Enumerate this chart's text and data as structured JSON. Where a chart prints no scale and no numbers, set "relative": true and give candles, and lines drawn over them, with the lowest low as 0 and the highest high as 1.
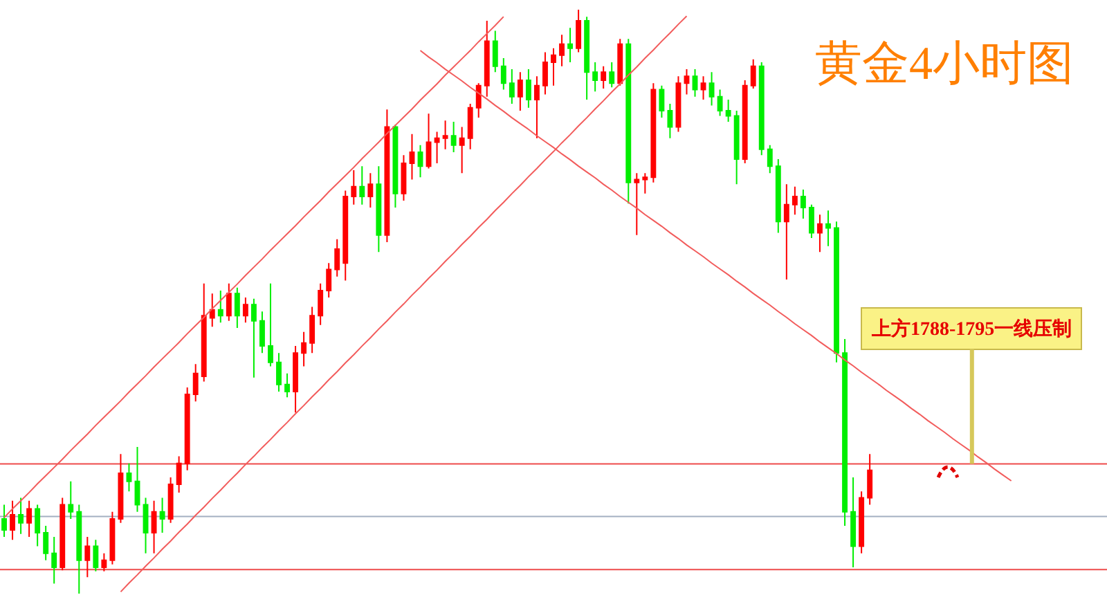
{
  "chart_data": {
    "type": "candlestick",
    "title": "黄金4小时图",
    "relative": true,
    "categories": [
      null,
      null,
      null,
      null,
      null,
      null,
      null,
      null,
      null,
      null,
      null,
      null,
      null,
      null,
      null,
      null,
      null,
      null,
      null,
      null,
      null,
      null,
      null,
      null,
      null,
      null,
      null,
      null,
      null,
      null,
      null,
      null,
      null,
      null,
      null,
      null,
      null,
      null,
      null,
      null,
      null,
      null,
      null,
      null,
      null,
      null,
      null,
      null,
      null,
      null,
      null,
      null,
      null,
      null,
      null,
      null,
      null,
      null,
      null,
      null,
      null,
      null,
      null,
      null,
      null,
      null,
      null,
      null,
      null,
      null,
      null,
      null,
      null,
      null,
      null,
      null,
      null,
      null,
      null,
      null,
      null,
      null,
      null,
      null,
      null,
      null,
      null,
      null,
      null,
      null,
      null,
      null,
      null,
      null,
      null,
      null,
      null,
      null,
      null,
      null,
      null,
      null,
      null,
      null,
      null,
      null,
      null,
      null,
      null,
      null,
      null,
      null,
      null,
      null,
      null,
      null,
      null,
      null,
      null,
      null,
      null,
      null,
      null,
      null,
      null,
      null,
      null,
      null,
      null,
      null,
      null,
      null,
      null
    ],
    "ohlc": [
      [
        0.128,
        0.152,
        0.097,
        0.109
      ],
      [
        0.109,
        0.159,
        0.092,
        0.135
      ],
      [
        0.135,
        0.164,
        0.102,
        0.121
      ],
      [
        0.121,
        0.159,
        0.097,
        0.145
      ],
      [
        0.145,
        0.152,
        0.081,
        0.104
      ],
      [
        0.104,
        0.116,
        0.057,
        0.069
      ],
      [
        0.069,
        0.097,
        0.017,
        0.045
      ],
      [
        0.045,
        0.164,
        0.04,
        0.152
      ],
      [
        0.152,
        0.192,
        0.128,
        0.14
      ],
      [
        0.14,
        0.152,
        0,
        0.057
      ],
      [
        0.057,
        0.097,
        0.028,
        0.081
      ],
      [
        0.081,
        0.092,
        0.038,
        0.045
      ],
      [
        0.045,
        0.069,
        0.038,
        0.057
      ],
      [
        0.057,
        0.14,
        0.05,
        0.128
      ],
      [
        0.128,
        0.239,
        0.121,
        0.206
      ],
      [
        0.206,
        0.223,
        0.175,
        0.192
      ],
      [
        0.192,
        0.251,
        0.14,
        0.152
      ],
      [
        0.152,
        0.164,
        0.069,
        0.104
      ],
      [
        0.104,
        0.159,
        0.069,
        0.14
      ],
      [
        0.14,
        0.164,
        0.104,
        0.128
      ],
      [
        0.128,
        0.199,
        0.121,
        0.187
      ],
      [
        0.187,
        0.235,
        0.173,
        0.223
      ],
      [
        0.223,
        0.353,
        0.211,
        0.341
      ],
      [
        0.341,
        0.393,
        0.329,
        0.377
      ],
      [
        0.372,
        0.531,
        0.363,
        0.476
      ],
      [
        0.472,
        0.514,
        0.457,
        0.486
      ],
      [
        0.486,
        0.519,
        0.464,
        0.476
      ],
      [
        0.476,
        0.531,
        0.467,
        0.514
      ],
      [
        0.514,
        0.524,
        0.455,
        0.476
      ],
      [
        0.476,
        0.507,
        0.464,
        0.495
      ],
      [
        0.495,
        0.505,
        0.37,
        0.467
      ],
      [
        0.467,
        0.483,
        0.412,
        0.424
      ],
      [
        0.424,
        0.531,
        0.389,
        0.396
      ],
      [
        0.396,
        0.412,
        0.346,
        0.358
      ],
      [
        0.358,
        0.377,
        0.336,
        0.346
      ],
      [
        0.346,
        0.424,
        0.31,
        0.412
      ],
      [
        0.412,
        0.448,
        0.389,
        0.429
      ],
      [
        0.429,
        0.491,
        0.412,
        0.476
      ],
      [
        0.476,
        0.531,
        0.46,
        0.519
      ],
      [
        0.519,
        0.566,
        0.507,
        0.555
      ],
      [
        0.555,
        0.607,
        0.543,
        0.59
      ],
      [
        0.566,
        0.69,
        0.536,
        0.68
      ],
      [
        0.68,
        0.725,
        0.666,
        0.697
      ],
      [
        0.697,
        0.732,
        0.666,
        0.68
      ],
      [
        0.68,
        0.72,
        0.661,
        0.701
      ],
      [
        0.701,
        0.732,
        0.585,
        0.614
      ],
      [
        0.614,
        0.829,
        0.602,
        0.799
      ],
      [
        0.799,
        0.803,
        0.661,
        0.685
      ],
      [
        0.685,
        0.751,
        0.673,
        0.737
      ],
      [
        0.737,
        0.787,
        0.709,
        0.756
      ],
      [
        0.756,
        0.768,
        0.713,
        0.732
      ],
      [
        0.732,
        0.822,
        0.728,
        0.773
      ],
      [
        0.773,
        0.791,
        0.737,
        0.78
      ],
      [
        0.78,
        0.81,
        0.761,
        0.784
      ],
      [
        0.784,
        0.808,
        0.756,
        0.768
      ],
      [
        0.768,
        0.799,
        0.72,
        0.78
      ],
      [
        0.78,
        0.839,
        0.761,
        0.832
      ],
      [
        0.832,
        0.874,
        0.815,
        0.87
      ],
      [
        0.87,
        0.981,
        0.851,
        0.946
      ],
      [
        0.946,
        0.964,
        0.893,
        0.903
      ],
      [
        0.903,
        0.917,
        0.863,
        0.874
      ],
      [
        0.874,
        0.898,
        0.839,
        0.851
      ],
      [
        0.851,
        0.893,
        0.827,
        0.879
      ],
      [
        0.879,
        0.898,
        0.832,
        0.846
      ],
      [
        0.846,
        0.886,
        0.78,
        0.87
      ],
      [
        0.87,
        0.927,
        0.855,
        0.91
      ],
      [
        0.91,
        0.934,
        0.87,
        0.922
      ],
      [
        0.922,
        0.957,
        0.903,
        0.941
      ],
      [
        0.941,
        0.969,
        0.91,
        0.934
      ],
      [
        0.934,
        1,
        0.927,
        0.981
      ],
      [
        0.981,
        0.988,
        0.846,
        0.893
      ],
      [
        0.893,
        0.91,
        0.86,
        0.879
      ],
      [
        0.879,
        0.903,
        0.865,
        0.893
      ],
      [
        0.893,
        0.91,
        0.867,
        0.874
      ],
      [
        0.874,
        0.95,
        0.87,
        0.941
      ],
      [
        0.941,
        0.95,
        0.668,
        0.704
      ],
      [
        0.704,
        0.72,
        0.614,
        0.709
      ],
      [
        0.709,
        0.72,
        0.685,
        0.713
      ],
      [
        0.713,
        0.874,
        0.704,
        0.863
      ],
      [
        0.863,
        0.87,
        0.815,
        0.827
      ],
      [
        0.827,
        0.839,
        0.78,
        0.799
      ],
      [
        0.799,
        0.886,
        0.791,
        0.874
      ],
      [
        0.874,
        0.898,
        0.855,
        0.886
      ],
      [
        0.886,
        0.898,
        0.851,
        0.863
      ],
      [
        0.863,
        0.886,
        0.846,
        0.874
      ],
      [
        0.874,
        0.893,
        0.836,
        0.851
      ],
      [
        0.851,
        0.863,
        0.818,
        0.827
      ],
      [
        0.827,
        0.846,
        0.808,
        0.818
      ],
      [
        0.818,
        0.827,
        0.701,
        0.744
      ],
      [
        0.744,
        0.879,
        0.737,
        0.87
      ],
      [
        0.87,
        0.915,
        0.865,
        0.903
      ],
      [
        0.903,
        0.91,
        0.751,
        0.761
      ],
      [
        0.761,
        0.768,
        0.72,
        0.732
      ],
      [
        0.732,
        0.744,
        0.618,
        0.637
      ],
      [
        0.637,
        0.701,
        0.538,
        0.666
      ],
      [
        0.666,
        0.697,
        0.649,
        0.68
      ],
      [
        0.68,
        0.692,
        0.642,
        0.661
      ],
      [
        0.661,
        0.666,
        0.609,
        0.618
      ],
      [
        0.618,
        0.649,
        0.585,
        0.633
      ],
      [
        0.633,
        0.656,
        0.595,
        0.626
      ],
      [
        0.626,
        0.637,
        0.396,
        0.412
      ],
      [
        0.412,
        0.436,
        0.116,
        0.14
      ],
      [
        0.14,
        0.199,
        0.045,
        0.081
      ],
      [
        0.081,
        0.175,
        0.069,
        0.164
      ],
      [
        0.164,
        0.239,
        0.152,
        0.211
      ],
      null,
      null,
      null,
      null,
      null,
      null,
      null,
      null,
      null,
      null,
      null,
      null,
      null,
      null,
      null,
      null,
      null,
      null,
      null,
      null,
      null,
      null,
      null,
      null,
      null,
      null,
      null,
      null
    ],
    "colors": [
      "#00ee00",
      "#ff0000",
      "#00ee00",
      "#ff0000",
      "#00ee00",
      "#00ee00",
      "#00ee00",
      "#ff0000",
      "#00ee00",
      "#00ee00",
      "#ff0000",
      "#00ee00",
      "#ff0000",
      "#ff0000",
      "#ff0000",
      "#00ee00",
      "#00ee00",
      "#00ee00",
      "#ff0000",
      "#00ee00",
      "#ff0000",
      "#ff0000",
      "#ff0000",
      "#ff0000",
      "#ff0000",
      "#ff0000",
      "#00ee00",
      "#ff0000",
      "#00ee00",
      "#ff0000",
      "#00ee00",
      "#00ee00",
      "#00ee00",
      "#00ee00",
      "#00ee00",
      "#ff0000",
      "#ff0000",
      "#ff0000",
      "#ff0000",
      "#ff0000",
      "#ff0000",
      "#ff0000",
      "#ff0000",
      "#00ee00",
      "#ff0000",
      "#00ee00",
      "#ff0000",
      "#00ee00",
      "#ff0000",
      "#ff0000",
      "#00ee00",
      "#ff0000",
      "#ff0000",
      "#ff0000",
      "#00ee00",
      "#ff0000",
      "#ff0000",
      "#ff0000",
      "#ff0000",
      "#00ee00",
      "#00ee00",
      "#00ee00",
      "#ff0000",
      "#00ee00",
      "#ff0000",
      "#ff0000",
      "#ff0000",
      "#ff0000",
      "#00ee00",
      "#ff0000",
      "#00ee00",
      "#00ee00",
      "#ff0000",
      "#00ee00",
      "#ff0000",
      "#00ee00",
      "#ff0000",
      "#ff0000",
      "#ff0000",
      "#00ee00",
      "#00ee00",
      "#ff0000",
      "#ff0000",
      "#00ee00",
      "#ff0000",
      "#00ee00",
      "#00ee00",
      "#00ee00",
      "#00ee00",
      "#ff0000",
      "#ff0000",
      "#00ee00",
      "#00ee00",
      "#00ee00",
      "#ff0000",
      "#ff0000",
      "#00ee00",
      "#00ee00",
      "#ff0000",
      "#00ee00",
      "#00ee00",
      "#00ee00",
      "#00ee00",
      "#ff0000",
      "#ff0000",
      null,
      null,
      null,
      null,
      null,
      null,
      null,
      null,
      null,
      null,
      null,
      null,
      null,
      null,
      null,
      null,
      null,
      null,
      null,
      null,
      null,
      null,
      null,
      null,
      null,
      null,
      null,
      null
    ],
    "series": [
      {
        "type": "line",
        "color": "#f25c5c",
        "values": [
          0.13,
          0.145,
          0.159,
          0.173,
          0.188,
          0.202,
          0.216,
          0.23,
          0.245,
          0.259,
          0.273,
          0.288,
          0.302,
          0.316,
          0.33,
          0.345,
          0.359,
          0.373,
          0.388,
          0.402,
          0.416,
          0.43,
          0.445,
          0.459,
          0.473,
          0.488,
          0.502,
          0.516,
          0.53,
          0.545,
          0.559,
          0.573,
          0.588,
          0.602,
          0.616,
          0.63,
          0.645,
          0.659,
          0.673,
          0.688,
          0.702,
          0.716,
          0.73,
          0.745,
          0.759,
          0.773,
          0.788,
          0.802,
          0.816,
          0.83,
          0.845,
          0.859,
          0.873,
          0.888,
          0.902,
          0.916,
          0.93,
          0.945,
          0.959,
          0.973,
          0.988,
          null,
          null,
          null,
          null,
          null,
          null,
          null,
          null,
          null,
          null,
          null,
          null,
          null,
          null,
          null,
          null,
          null,
          null,
          null,
          null,
          null,
          null,
          null,
          null,
          null,
          null,
          null,
          null,
          null,
          null,
          null,
          null,
          null,
          null,
          null,
          null,
          null,
          null,
          null,
          null,
          null,
          null,
          null,
          null,
          null,
          null,
          null,
          null,
          null,
          null,
          null,
          null,
          null,
          null,
          null,
          null,
          null,
          null,
          null,
          null,
          null,
          null,
          null,
          null,
          null,
          null,
          null,
          null,
          null,
          null,
          null,
          null
        ]
      },
      {
        "type": "line",
        "color": "#f25c5c",
        "values": [
          null,
          null,
          null,
          null,
          null,
          null,
          null,
          null,
          null,
          null,
          null,
          null,
          null,
          null,
          0.003,
          0.018,
          0.032,
          0.047,
          0.061,
          0.076,
          0.09,
          0.105,
          0.119,
          0.134,
          0.148,
          0.163,
          0.177,
          0.192,
          0.206,
          0.221,
          0.235,
          0.25,
          0.264,
          0.279,
          0.293,
          0.308,
          0.322,
          0.337,
          0.351,
          0.366,
          0.38,
          0.395,
          0.409,
          0.424,
          0.438,
          0.453,
          0.467,
          0.482,
          0.496,
          0.511,
          0.525,
          0.54,
          0.554,
          0.569,
          0.583,
          0.598,
          0.612,
          0.627,
          0.641,
          0.656,
          0.67,
          0.685,
          0.699,
          0.714,
          0.728,
          0.743,
          0.757,
          0.772,
          0.786,
          0.801,
          0.815,
          0.83,
          0.844,
          0.859,
          0.873,
          0.888,
          0.902,
          0.917,
          0.931,
          0.946,
          0.96,
          0.975,
          0.989,
          null,
          null,
          null,
          null,
          null,
          null,
          null,
          null,
          null,
          null,
          null,
          null,
          null,
          null,
          null,
          null,
          null,
          null,
          null,
          null,
          null,
          null,
          null,
          null,
          null,
          null,
          null,
          null,
          null,
          null,
          null,
          null,
          null,
          null,
          null,
          null,
          null,
          null,
          null,
          null,
          null,
          null,
          null,
          null,
          null,
          null,
          null,
          null,
          null,
          null
        ]
      },
      {
        "type": "line",
        "color": "#f25c5c",
        "values": [
          null,
          null,
          null,
          null,
          null,
          null,
          null,
          null,
          null,
          null,
          null,
          null,
          null,
          null,
          null,
          null,
          null,
          null,
          null,
          null,
          null,
          null,
          null,
          null,
          null,
          null,
          null,
          null,
          null,
          null,
          null,
          null,
          null,
          null,
          null,
          null,
          null,
          null,
          null,
          null,
          null,
          null,
          null,
          null,
          null,
          null,
          null,
          null,
          null,
          null,
          0.93,
          0.919,
          0.909,
          0.898,
          0.888,
          0.878,
          0.867,
          0.857,
          0.847,
          0.836,
          0.826,
          0.815,
          0.805,
          0.795,
          0.784,
          0.774,
          0.764,
          0.753,
          0.743,
          0.732,
          0.722,
          0.712,
          0.701,
          0.691,
          0.68,
          0.67,
          0.66,
          0.649,
          0.639,
          0.629,
          0.618,
          0.608,
          0.597,
          0.587,
          0.577,
          0.566,
          0.556,
          0.546,
          0.535,
          0.525,
          0.514,
          0.504,
          0.494,
          0.483,
          0.473,
          0.462,
          0.452,
          0.442,
          0.431,
          0.421,
          0.411,
          0.4,
          0.39,
          0.379,
          0.369,
          0.359,
          0.348,
          0.338,
          0.328,
          0.317,
          0.307,
          0.296,
          0.286,
          0.276,
          0.265,
          0.255,
          0.245,
          0.234,
          0.224,
          0.213,
          0.203,
          0.193,
          null,
          null,
          null,
          null,
          null,
          null,
          null,
          null,
          null,
          null,
          null
        ]
      }
    ],
    "ref_lines": [
      {
        "axis": "y",
        "value": 0.222,
        "color": "#ee4b4b"
      },
      {
        "axis": "y",
        "value": 0.132,
        "color": "#a3afc2"
      },
      {
        "axis": "y",
        "value": 0.041,
        "color": "#ee4b4b"
      }
    ],
    "annotations": [
      {
        "text": "上方1788-1795一线压制",
        "y": 0.222
      }
    ]
  }
}
